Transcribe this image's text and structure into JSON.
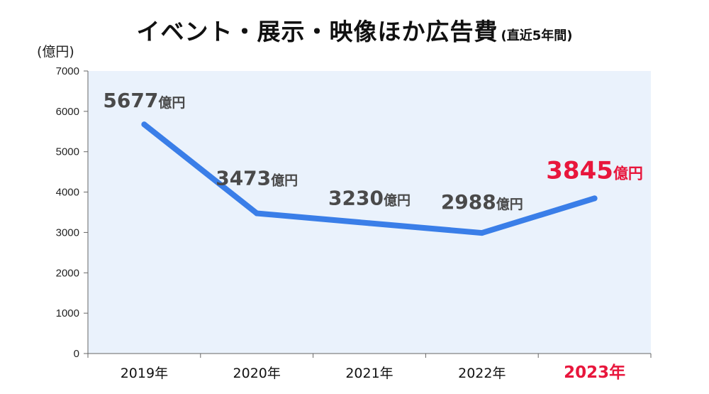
{
  "header": {
    "title": "イベント・展示・映像ほか広告費",
    "subtitle": "(直近5年間)"
  },
  "chart_data": {
    "type": "line",
    "title": "イベント・展示・映像ほか広告費",
    "subtitle": "(直近5年間)",
    "ylabel": "(億円)",
    "categories": [
      "2019年",
      "2020年",
      "2021年",
      "2022年",
      "2023年"
    ],
    "series": [
      {
        "values": [
          5677,
          3473,
          3230,
          2988,
          3845
        ]
      }
    ],
    "data_labels": [
      "5677",
      "3473",
      "3230",
      "2988",
      "3845"
    ],
    "data_label_unit": "億円",
    "highlight_index": 4,
    "ylim": [
      0,
      7000
    ],
    "yticks": [
      0,
      1000,
      2000,
      3000,
      4000,
      5000,
      6000,
      7000
    ],
    "grid": false,
    "colors": {
      "line": "#3a7ee8",
      "plot_background": "#eaf2fc",
      "highlight": "#e8163c",
      "label": "#4a4a4a"
    }
  }
}
